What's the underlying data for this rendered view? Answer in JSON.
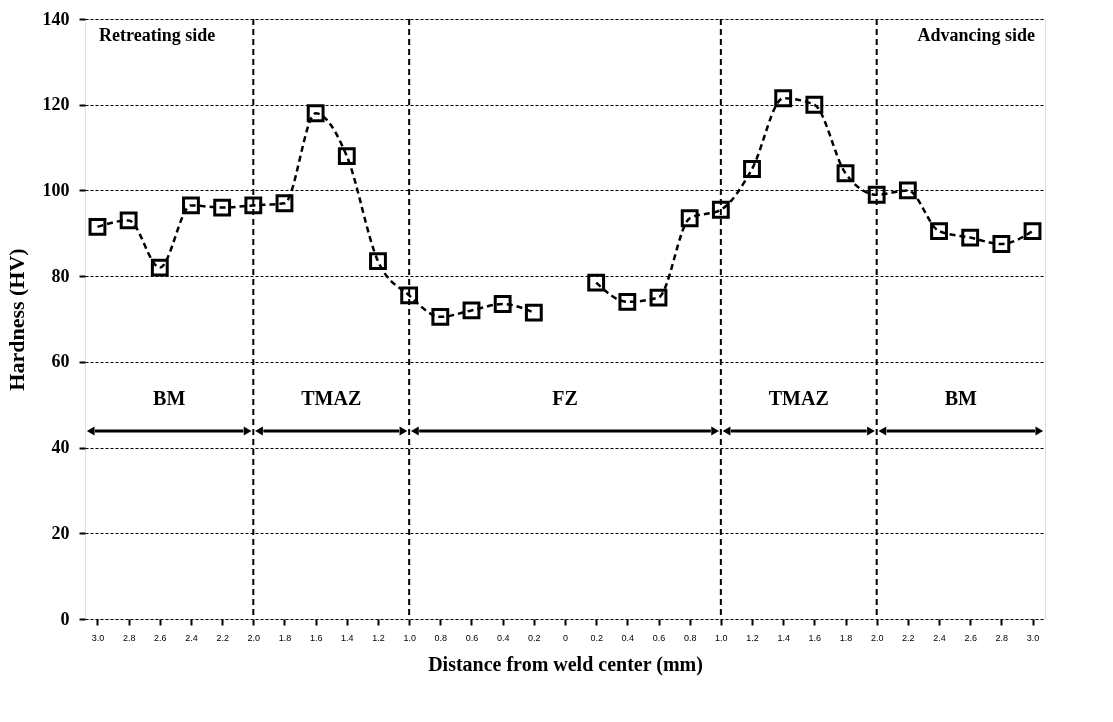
{
  "chart_data": {
    "type": "line",
    "xlabel": "Distance from weld center (mm)",
    "ylabel": "Hardness (HV)",
    "x": [
      -3.0,
      -2.8,
      -2.6,
      -2.4,
      -2.2,
      -2.0,
      -1.8,
      -1.6,
      -1.4,
      -1.2,
      -1.0,
      -0.8,
      -0.6,
      -0.4,
      -0.2,
      0,
      0.2,
      0.4,
      0.6,
      0.8,
      1.0,
      1.2,
      1.4,
      1.6,
      1.8,
      2.0,
      2.2,
      2.4,
      2.6,
      2.8,
      3.0
    ],
    "series": [
      {
        "color": "#000000",
        "values": [
          91.5,
          93,
          82,
          96.5,
          96,
          96.5,
          97,
          118,
          108,
          83.5,
          75.5,
          70.5,
          72,
          73.5,
          71.5,
          null,
          78.5,
          74,
          75,
          93.5,
          95.5,
          105,
          121.5,
          120,
          104,
          99,
          100,
          90.5,
          89,
          87.5,
          90.5
        ]
      }
    ],
    "xlim": [
      -3.08,
      3.08
    ],
    "xticks": [
      {
        "value": -3.0,
        "label": "3.0"
      },
      {
        "value": -2.8,
        "label": "2.8"
      },
      {
        "value": -2.6,
        "label": "2.6"
      },
      {
        "value": -2.4,
        "label": "2.4"
      },
      {
        "value": -2.2,
        "label": "2.2"
      },
      {
        "value": -2.0,
        "label": "2.0"
      },
      {
        "value": -1.8,
        "label": "1.8"
      },
      {
        "value": -1.6,
        "label": "1.6"
      },
      {
        "value": -1.4,
        "label": "1.4"
      },
      {
        "value": -1.2,
        "label": "1.2"
      },
      {
        "value": -1.0,
        "label": "1.0"
      },
      {
        "value": -0.8,
        "label": "0.8"
      },
      {
        "value": -0.6,
        "label": "0.6"
      },
      {
        "value": -0.4,
        "label": "0.4"
      },
      {
        "value": -0.2,
        "label": "0.2"
      },
      0,
      0.2,
      0.4,
      0.6,
      0.8,
      {
        "value": 1.0,
        "label": "1.0"
      },
      1.2,
      1.4,
      1.6,
      1.8,
      {
        "value": 2.0,
        "label": "2.0"
      },
      2.2,
      2.4,
      2.6,
      2.8,
      {
        "value": 3.0,
        "label": "3.0"
      }
    ],
    "ylim": [
      0,
      140
    ],
    "yticks": [
      0,
      20,
      40,
      60,
      80,
      100,
      120,
      140
    ],
    "grid": "y",
    "marker": "square",
    "line_style": "dashed",
    "ref_lines": [
      {
        "axis": "x",
        "value": -2.0,
        "line_style": "dashed"
      },
      {
        "axis": "x",
        "value": -1.0,
        "line_style": "dashed"
      },
      {
        "axis": "x",
        "value": 1.0,
        "line_style": "dashed"
      },
      {
        "axis": "x",
        "value": 2.0,
        "line_style": "dashed"
      }
    ],
    "annotations": [
      "Retreating side",
      "Advancing side",
      "BM",
      "TMAZ",
      "FZ",
      "TMAZ",
      "BM"
    ]
  }
}
